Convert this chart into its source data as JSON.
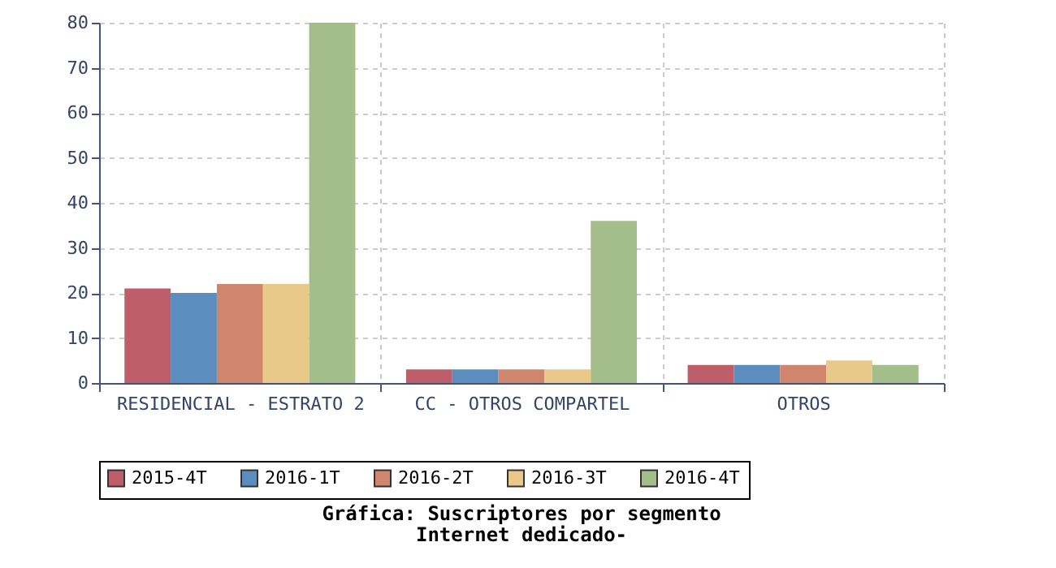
{
  "chart_data": {
    "type": "bar",
    "title": "Gráfica: Suscriptores por segmento",
    "subtitle": "Internet dedicado-",
    "categories": [
      "RESIDENCIAL - ESTRATO 2",
      "CC - OTROS COMPARTEL",
      "OTROS"
    ],
    "series": [
      {
        "name": "2015-4T",
        "color": "#bd5e68",
        "values": [
          21,
          3,
          4
        ]
      },
      {
        "name": "2016-1T",
        "color": "#5b8ebf",
        "values": [
          20,
          3,
          4
        ]
      },
      {
        "name": "2016-2T",
        "color": "#cf866c",
        "values": [
          22,
          3,
          4
        ]
      },
      {
        "name": "2016-3T",
        "color": "#e9c98a",
        "values": [
          22,
          3,
          5
        ]
      },
      {
        "name": "2016-4T",
        "color": "#a3bd8b",
        "values": [
          80,
          36,
          4
        ]
      }
    ],
    "ylim": [
      0,
      80
    ],
    "yticks": [
      0,
      10,
      20,
      30,
      40,
      50,
      60,
      70,
      80
    ],
    "grid": true,
    "legend": "bottom"
  }
}
